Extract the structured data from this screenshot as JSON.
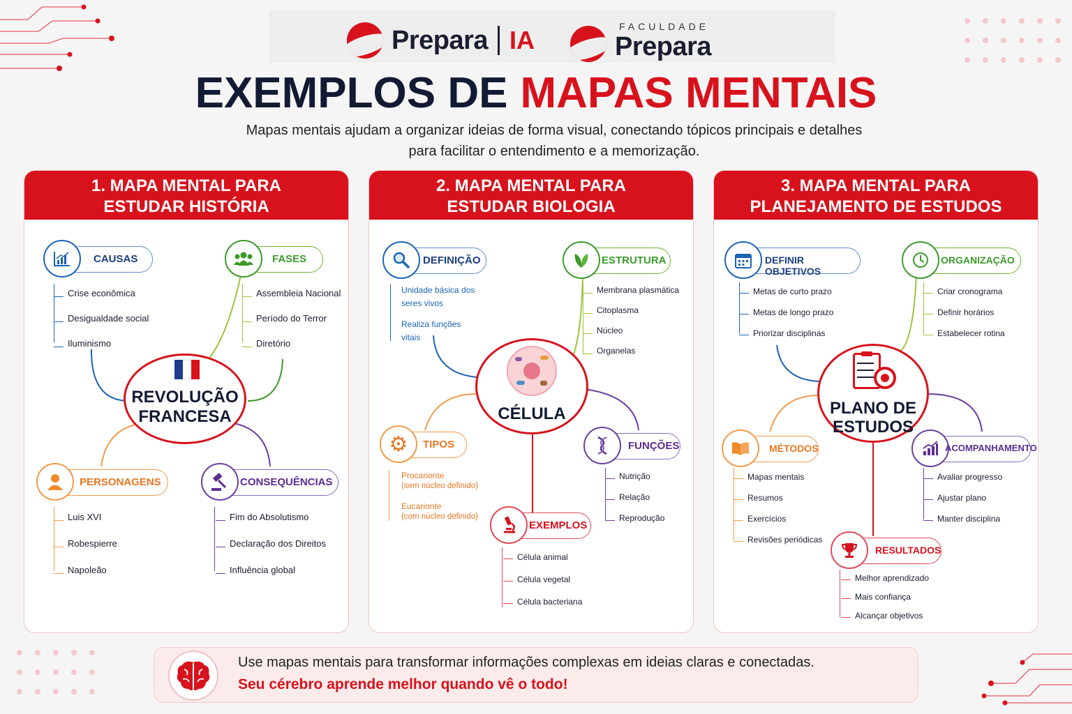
{
  "header": {
    "logo1_name": "Prepara",
    "logo1_suffix": "IA",
    "logo2_small": "FACULDADE",
    "logo2_name": "Prepara",
    "title_part1": "EXEMPLOS DE",
    "title_part2": "MAPAS MENTAIS",
    "subtitle_line1": "Mapas mentais ajudam a organizar ideias de forma visual, conectando tópicos principais e detalhes",
    "subtitle_line2": "para facilitar o entendimento e a memorização."
  },
  "colors": {
    "brand_red": "#d8121c",
    "navy": "#131a33",
    "blue": "#1b63b5",
    "green": "#3c9a2a",
    "orange": "#e87722",
    "purple": "#5b2d91"
  },
  "cards": [
    {
      "title_line1": "1. MAPA MENTAL PARA",
      "title_line2": "ESTUDAR HISTÓRIA",
      "center_line1": "REVOLUÇÃO",
      "center_line2": "FRANCESA",
      "center_icon": "france-flag-icon",
      "branches": [
        {
          "label": "CAUSAS",
          "icon": "chart-icon",
          "items": [
            "Crise econômica",
            "Desigualdade social",
            "Iluminismo"
          ]
        },
        {
          "label": "FASES",
          "icon": "people-icon",
          "items": [
            "Assembleia Nacional",
            "Período do Terror",
            "Diretório"
          ]
        },
        {
          "label": "PERSONAGENS",
          "icon": "person-icon",
          "items": [
            "Luis XVI",
            "Robespierre",
            "Napoleão"
          ]
        },
        {
          "label": "CONSEQUÊNCIAS",
          "icon": "gavel-icon",
          "items": [
            "Fim do Absolutismo",
            "Declaração dos Direitos",
            "Influência global"
          ]
        }
      ]
    },
    {
      "title_line1": "2. MAPA MENTAL PARA",
      "title_line2": "ESTUDAR BIOLOGIA",
      "center_line1": "CÉLULA",
      "center_icon": "cell-icon",
      "branches": [
        {
          "label": "DEFINIÇÃO",
          "icon": "magnifier-icon",
          "items": [
            "Unidade básica dos",
            "seres vivos",
            "Realiza funções",
            "vitais"
          ]
        },
        {
          "label": "ESTRUTURA",
          "icon": "leaf-icon",
          "items": [
            "Membrana plasmática",
            "Citoplasma",
            "Núcleo",
            "Organelas"
          ]
        },
        {
          "label": "TIPOS",
          "icon": "gear-icon",
          "items": [
            "Procarionte",
            "(sem núcleo definido)",
            "Eucarionte",
            "(com núcleo definido)"
          ]
        },
        {
          "label": "FUNÇÕES",
          "icon": "dna-icon",
          "items": [
            "Nutrição",
            "Relação",
            "Reprodução"
          ]
        },
        {
          "label": "EXEMPLOS",
          "icon": "microscope-icon",
          "items": [
            "Célula animal",
            "Célula vegetal",
            "Célula bacteriana"
          ]
        }
      ]
    },
    {
      "title_line1": "3. MAPA MENTAL PARA",
      "title_line2": "PLANEJAMENTO DE ESTUDOS",
      "center_line1": "PLANO DE",
      "center_line2": "ESTUDOS",
      "center_icon": "checklist-target-icon",
      "branches": [
        {
          "label": "DEFINIR OBJETIVOS",
          "icon": "calendar-icon",
          "items": [
            "Metas de curto prazo",
            "Metas de longo prazo",
            "Priorizar disciplinas"
          ]
        },
        {
          "label": "ORGANIZAÇÃO",
          "icon": "clock-icon",
          "items": [
            "Criar cronograma",
            "Definir horários",
            "Estabelecer rotina"
          ]
        },
        {
          "label": "MÉTODOS",
          "icon": "book-icon",
          "items": [
            "Mapas mentais",
            "Resumos",
            "Exercícios",
            "Revisões periódicas"
          ]
        },
        {
          "label": "ACOMPANHAMENTO",
          "icon": "growth-chart-icon",
          "items": [
            "Avaliar progresso",
            "Ajustar plano",
            "Manter disciplina"
          ]
        },
        {
          "label": "RESULTADOS",
          "icon": "trophy-icon",
          "items": [
            "Melhor aprendizado",
            "Mais confiança",
            "Alcançar objetivos"
          ]
        }
      ]
    }
  ],
  "banner": {
    "icon": "brain-icon",
    "line1": "Use mapas mentais para transformar informações complexas em ideias claras e conectadas.",
    "line2": "Seu cérebro aprende melhor quando vê o todo!"
  }
}
